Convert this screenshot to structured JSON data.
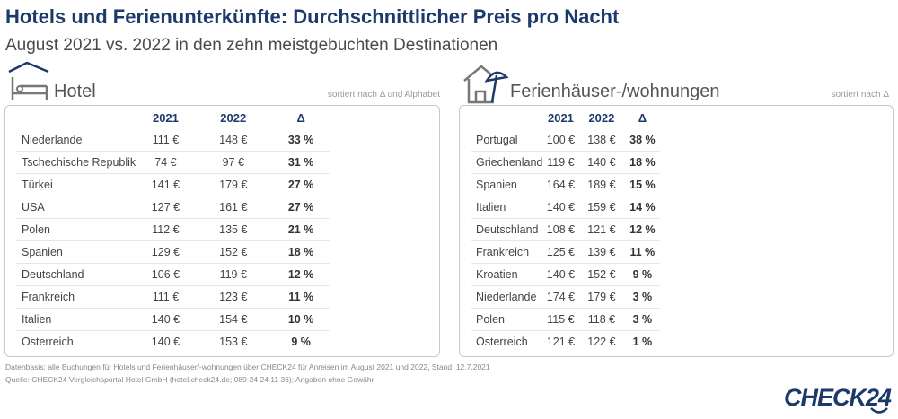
{
  "header": {
    "title": "Hotels und Ferienunterkünfte: Durchschnittlicher Preis pro Nacht",
    "subtitle": "August 2021 vs. 2022 in den zehn meistgebuchten Destinationen"
  },
  "colors": {
    "accent": "#1b3a6b",
    "text": "#444444",
    "border": "#c8c8c8"
  },
  "chart_data": [
    {
      "type": "table",
      "title": "Hotel",
      "icon": "hotel-bed-icon",
      "note": "sortiert nach Δ und Alphabet",
      "columns": [
        "",
        "2021",
        "2022",
        "Δ"
      ],
      "rows": [
        [
          "Niederlande",
          "111 €",
          "148 €",
          "33 %"
        ],
        [
          "Tschechische Republik",
          "74 €",
          "97 €",
          "31 %"
        ],
        [
          "Türkei",
          "141 €",
          "179 €",
          "27 %"
        ],
        [
          "USA",
          "127 €",
          "161 €",
          "27 %"
        ],
        [
          "Polen",
          "112 €",
          "135 €",
          "21 %"
        ],
        [
          "Spanien",
          "129 €",
          "152 €",
          "18 %"
        ],
        [
          "Deutschland",
          "106 €",
          "119 €",
          "12 %"
        ],
        [
          "Frankreich",
          "111 €",
          "123 €",
          "11 %"
        ],
        [
          "Italien",
          "140 €",
          "154 €",
          "10 %"
        ],
        [
          "Österreich",
          "140 €",
          "153 €",
          "9 %"
        ]
      ]
    },
    {
      "type": "table",
      "title": "Ferienhäuser-/wohnungen",
      "icon": "house-umbrella-icon",
      "note": "sortiert nach Δ",
      "columns": [
        "",
        "2021",
        "2022",
        "Δ"
      ],
      "rows": [
        [
          "Portugal",
          "100 €",
          "138 €",
          "38 %"
        ],
        [
          "Griechenland",
          "119 €",
          "140 €",
          "18 %"
        ],
        [
          "Spanien",
          "164 €",
          "189 €",
          "15 %"
        ],
        [
          "Italien",
          "140 €",
          "159 €",
          "14 %"
        ],
        [
          "Deutschland",
          "108 €",
          "121 €",
          "12 %"
        ],
        [
          "Frankreich",
          "125 €",
          "139 €",
          "11 %"
        ],
        [
          "Kroatien",
          "140 €",
          "152 €",
          "9 %"
        ],
        [
          "Niederlande",
          "174 €",
          "179 €",
          "3 %"
        ],
        [
          "Polen",
          "115 €",
          "118 €",
          "3 %"
        ],
        [
          "Österreich",
          "121 €",
          "122 €",
          "1 %"
        ]
      ]
    }
  ],
  "footer": {
    "line1": "Datenbasis: alle Buchungen für Hotels und Ferienhäuser/-wohnungen über CHECK24 für Anreisen im August 2021 und 2022, Stand: 12.7.2021",
    "line2": "Quelle: CHECK24 Vergleichsportal Hotel GmbH (hotel.check24.de; 089-24 24 11 36); Angaben ohne Gewähr",
    "logo": "CHECK24"
  }
}
